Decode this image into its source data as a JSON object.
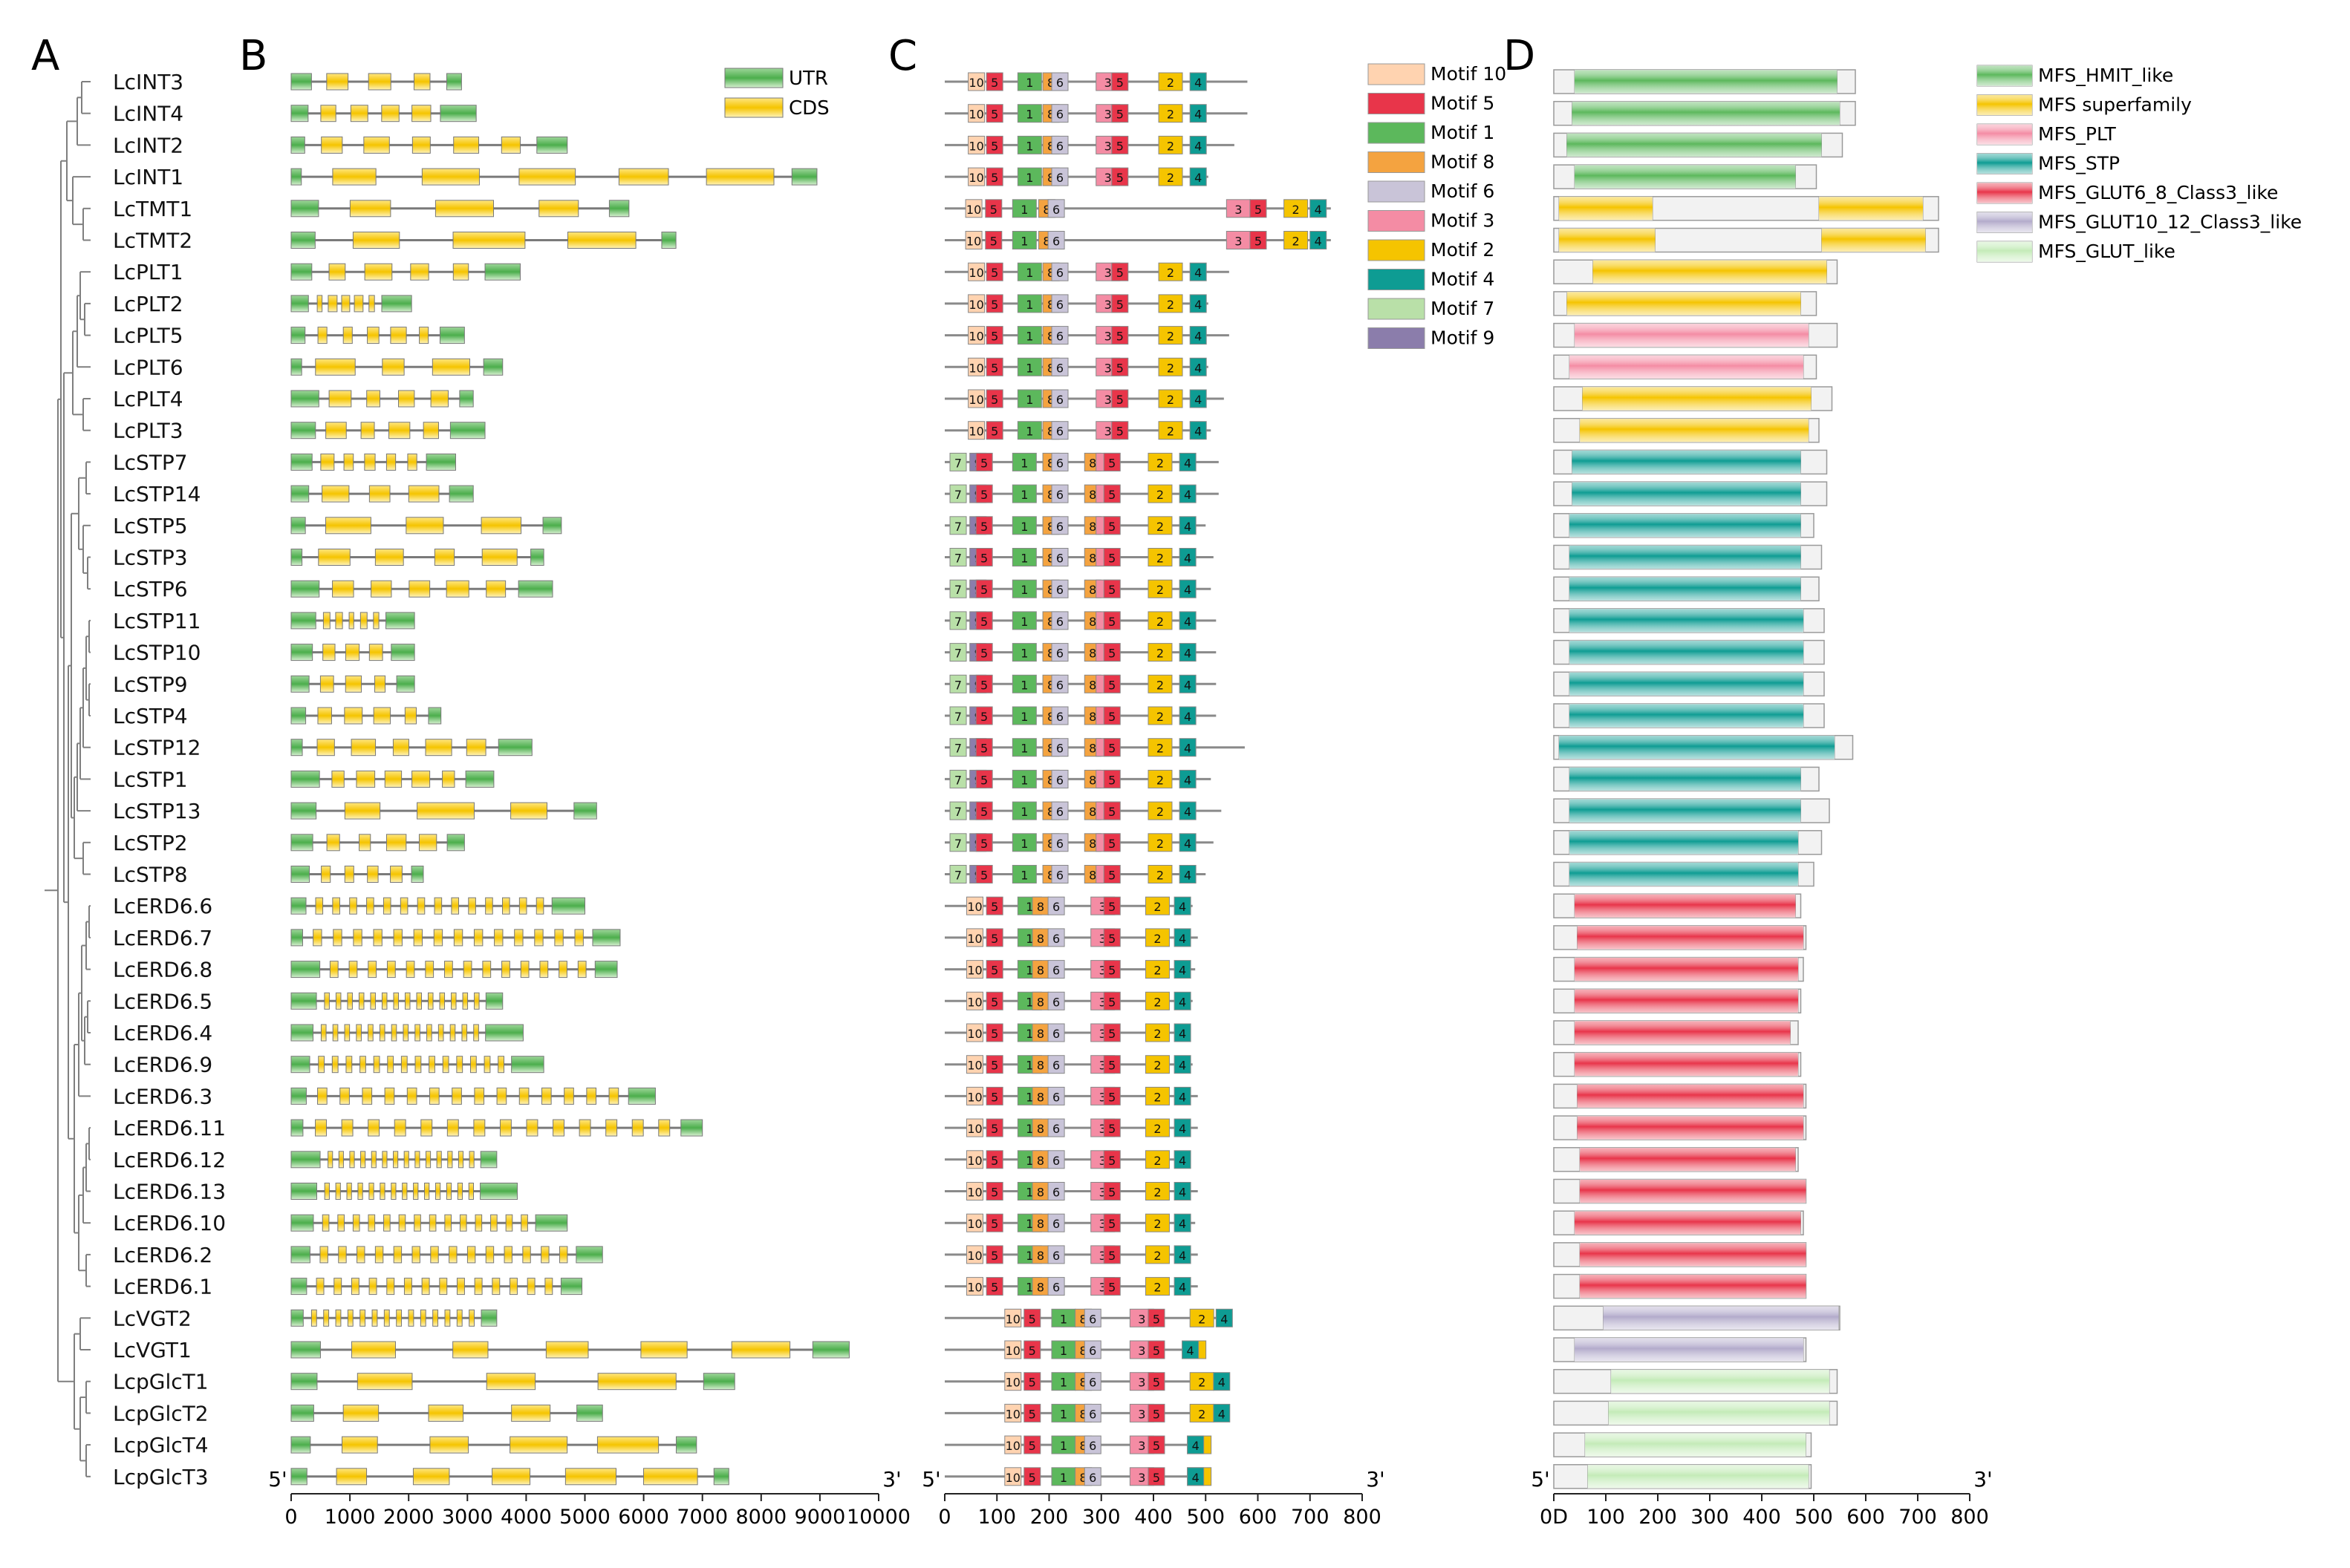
{
  "panels": {
    "a": "A",
    "b": "B",
    "c": "C",
    "d": "D"
  },
  "genes": [
    "LcINT3",
    "LcINT4",
    "LcINT2",
    "LcINT1",
    "LcTMT1",
    "LcTMT2",
    "LcPLT1",
    "LcPLT2",
    "LcPLT5",
    "LcPLT6",
    "LcPLT4",
    "LcPLT3",
    "LcSTP7",
    "LcSTP14",
    "LcSTP5",
    "LcSTP3",
    "LcSTP6",
    "LcSTP11",
    "LcSTP10",
    "LcSTP9",
    "LcSTP4",
    "LcSTP12",
    "LcSTP1",
    "LcSTP13",
    "LcSTP2",
    "LcSTP8",
    "LcERD6.6",
    "LcERD6.7",
    "LcERD6.8",
    "LcERD6.5",
    "LcERD6.4",
    "LcERD6.9",
    "LcERD6.3",
    "LcERD6.11",
    "LcERD6.12",
    "LcERD6.13",
    "LcERD6.10",
    "LcERD6.2",
    "LcERD6.1",
    "LcVGT2",
    "LcVGT1",
    "LcpGlcT1",
    "LcpGlcT2",
    "LcpGlcT4",
    "LcpGlcT3"
  ],
  "gene_structure": {
    "legend": [
      {
        "label": "UTR",
        "color": "#5cb85c"
      },
      {
        "label": "CDS",
        "color": "#f5c400"
      }
    ],
    "axis": {
      "ticks": [
        0,
        1000,
        2000,
        3000,
        4000,
        5000,
        6000,
        7000,
        8000,
        9000,
        10000
      ],
      "max": 10000,
      "left_label": "5'",
      "right_label": "3'"
    },
    "lengths": [
      2900,
      3150,
      4700,
      8950,
      5750,
      6550,
      3900,
      2050,
      2950,
      3600,
      3100,
      3300,
      2800,
      3100,
      4600,
      4300,
      4450,
      2100,
      2100,
      2100,
      2550,
      4100,
      3450,
      5200,
      2950,
      2250,
      5000,
      5600,
      5550,
      3600,
      3950,
      4300,
      6200,
      7000,
      3500,
      3850,
      4700,
      5300,
      4950,
      3500,
      9500,
      7550,
      5300,
      6900,
      7450
    ]
  },
  "motif_panel": {
    "axis": {
      "ticks": [
        0,
        100,
        200,
        300,
        400,
        500,
        600,
        700,
        800
      ],
      "max": 800,
      "left_label": "5'",
      "right_label": "3'"
    },
    "legend": [
      {
        "id": "10",
        "label": "Motif 10",
        "color": "#ffd3b0"
      },
      {
        "id": "5",
        "label": "Motif 5",
        "color": "#e8354a"
      },
      {
        "id": "1",
        "label": "Motif 1",
        "color": "#5cb85c"
      },
      {
        "id": "8",
        "label": "Motif 8",
        "color": "#f4a340"
      },
      {
        "id": "6",
        "label": "Motif 6",
        "color": "#c9c4d8"
      },
      {
        "id": "3",
        "label": "Motif 3",
        "color": "#f48ca4"
      },
      {
        "id": "2",
        "label": "Motif 2",
        "color": "#f5c400"
      },
      {
        "id": "4",
        "label": "Motif 4",
        "color": "#0e9c93"
      },
      {
        "id": "7",
        "label": "Motif 7",
        "color": "#b9e0a8"
      },
      {
        "id": "9",
        "label": "Motif 9",
        "color": "#8b7dab"
      }
    ],
    "lengths": [
      580,
      580,
      555,
      505,
      740,
      740,
      545,
      505,
      545,
      505,
      535,
      510,
      525,
      525,
      500,
      515,
      510,
      520,
      520,
      520,
      520,
      575,
      510,
      530,
      515,
      500,
      475,
      485,
      480,
      475,
      470,
      475,
      485,
      485,
      470,
      485,
      480,
      485,
      485,
      550,
      485,
      545,
      545,
      495,
      495
    ]
  },
  "domain_panel": {
    "axis": {
      "ticks": [
        0,
        100,
        200,
        300,
        400,
        500,
        600,
        700,
        800
      ],
      "tick_labels": [
        "0D",
        "100",
        "200",
        "300",
        "400",
        "500",
        "600",
        "700",
        "800"
      ],
      "max": 800,
      "left_label": "5'",
      "right_label": "3'"
    },
    "legend": [
      {
        "label": "MFS_HMIT_like",
        "color": "#5cb85c"
      },
      {
        "label": "MFS superfamily",
        "color": "#f5c400"
      },
      {
        "label": "MFS_PLT",
        "color": "#f48ca4"
      },
      {
        "label": "MFS_STP",
        "color": "#0e9c93"
      },
      {
        "label": "MFS_GLUT6_8_Class3_like",
        "color": "#e8354a"
      },
      {
        "label": "MFS_GLUT10_12_Class3_like",
        "color": "#b3abcb"
      },
      {
        "label": "MFS_GLUT_like",
        "color": "#c4ebb8"
      }
    ],
    "lengths": [
      580,
      580,
      555,
      505,
      740,
      740,
      545,
      505,
      545,
      505,
      535,
      510,
      525,
      525,
      500,
      515,
      510,
      520,
      520,
      520,
      520,
      575,
      510,
      530,
      515,
      500,
      475,
      485,
      480,
      475,
      470,
      475,
      485,
      485,
      470,
      485,
      480,
      485,
      485,
      550,
      485,
      545,
      545,
      495,
      495
    ],
    "domains": [
      [
        {
          "t": 0,
          "s": 40,
          "e": 545
        }
      ],
      [
        {
          "t": 0,
          "s": 35,
          "e": 550
        }
      ],
      [
        {
          "t": 0,
          "s": 25,
          "e": 515
        }
      ],
      [
        {
          "t": 0,
          "s": 40,
          "e": 465
        }
      ],
      [
        {
          "t": 1,
          "s": 10,
          "e": 190
        },
        {
          "t": 1,
          "s": 510,
          "e": 710
        }
      ],
      [
        {
          "t": 1,
          "s": 10,
          "e": 195
        },
        {
          "t": 1,
          "s": 515,
          "e": 715
        }
      ],
      [
        {
          "t": 1,
          "s": 75,
          "e": 525
        }
      ],
      [
        {
          "t": 1,
          "s": 25,
          "e": 475
        }
      ],
      [
        {
          "t": 2,
          "s": 40,
          "e": 490
        }
      ],
      [
        {
          "t": 2,
          "s": 30,
          "e": 480
        }
      ],
      [
        {
          "t": 1,
          "s": 55,
          "e": 495
        }
      ],
      [
        {
          "t": 1,
          "s": 50,
          "e": 490
        }
      ],
      [
        {
          "t": 3,
          "s": 35,
          "e": 475
        }
      ],
      [
        {
          "t": 3,
          "s": 35,
          "e": 475
        }
      ],
      [
        {
          "t": 3,
          "s": 30,
          "e": 475
        }
      ],
      [
        {
          "t": 3,
          "s": 30,
          "e": 475
        }
      ],
      [
        {
          "t": 3,
          "s": 30,
          "e": 475
        }
      ],
      [
        {
          "t": 3,
          "s": 30,
          "e": 480
        }
      ],
      [
        {
          "t": 3,
          "s": 30,
          "e": 480
        }
      ],
      [
        {
          "t": 3,
          "s": 30,
          "e": 480
        }
      ],
      [
        {
          "t": 3,
          "s": 30,
          "e": 480
        }
      ],
      [
        {
          "t": 3,
          "s": 10,
          "e": 540
        }
      ],
      [
        {
          "t": 3,
          "s": 30,
          "e": 475
        }
      ],
      [
        {
          "t": 3,
          "s": 30,
          "e": 475
        }
      ],
      [
        {
          "t": 3,
          "s": 30,
          "e": 470
        }
      ],
      [
        {
          "t": 3,
          "s": 30,
          "e": 470
        }
      ],
      [
        {
          "t": 4,
          "s": 40,
          "e": 465
        }
      ],
      [
        {
          "t": 4,
          "s": 45,
          "e": 480
        }
      ],
      [
        {
          "t": 4,
          "s": 40,
          "e": 470
        }
      ],
      [
        {
          "t": 4,
          "s": 40,
          "e": 470
        }
      ],
      [
        {
          "t": 4,
          "s": 40,
          "e": 455
        }
      ],
      [
        {
          "t": 4,
          "s": 40,
          "e": 470
        }
      ],
      [
        {
          "t": 4,
          "s": 45,
          "e": 480
        }
      ],
      [
        {
          "t": 4,
          "s": 45,
          "e": 480
        }
      ],
      [
        {
          "t": 4,
          "s": 50,
          "e": 465
        }
      ],
      [
        {
          "t": 4,
          "s": 50,
          "e": 485
        }
      ],
      [
        {
          "t": 4,
          "s": 40,
          "e": 475
        }
      ],
      [
        {
          "t": 4,
          "s": 50,
          "e": 485
        }
      ],
      [
        {
          "t": 4,
          "s": 50,
          "e": 485
        }
      ],
      [
        {
          "t": 5,
          "s": 95,
          "e": 548
        }
      ],
      [
        {
          "t": 5,
          "s": 40,
          "e": 480
        }
      ],
      [
        {
          "t": 6,
          "s": 110,
          "e": 530
        }
      ],
      [
        {
          "t": 6,
          "s": 105,
          "e": 530
        }
      ],
      [
        {
          "t": 6,
          "s": 60,
          "e": 485
        }
      ],
      [
        {
          "t": 6,
          "s": 65,
          "e": 490
        }
      ]
    ]
  }
}
